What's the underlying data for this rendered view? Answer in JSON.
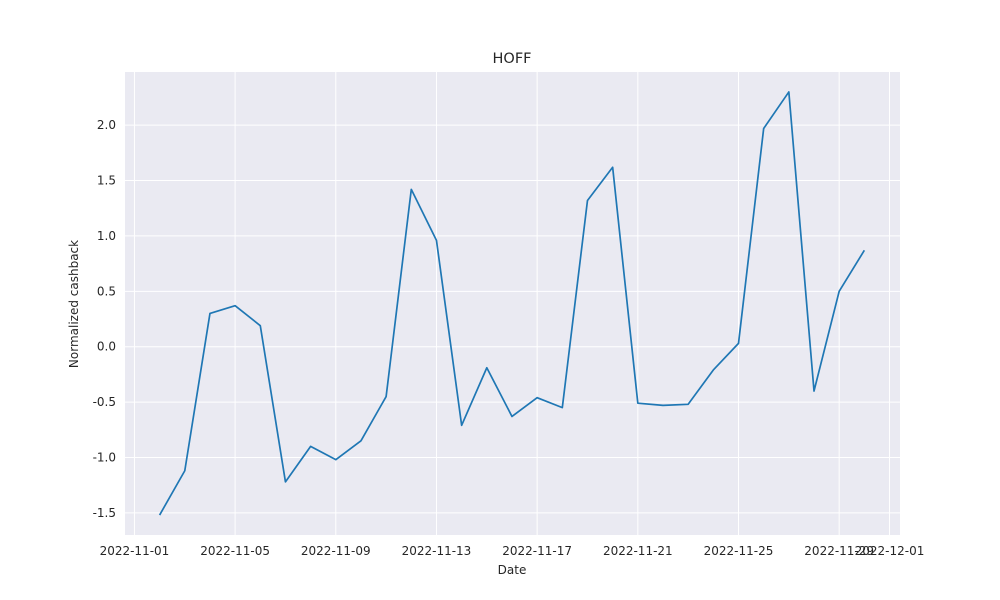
{
  "chart_data": {
    "type": "line",
    "title": "HOFF",
    "xlabel": "Date",
    "ylabel": "Normalized cashback",
    "x_ticks": [
      "2022-11-01",
      "2022-11-05",
      "2022-11-09",
      "2022-11-13",
      "2022-11-17",
      "2022-11-21",
      "2022-11-25",
      "2022-11-29",
      "2022-12-01"
    ],
    "xlim": [
      "2022-10-31T15:00",
      "2022-12-01T10:00"
    ],
    "y_ticks": [
      -1.5,
      -1.0,
      -0.5,
      0.0,
      0.5,
      1.0,
      1.5,
      2.0
    ],
    "ylim": [
      -1.7,
      2.48
    ],
    "grid": true,
    "colors": {
      "background": "#eaeaf2",
      "grid": "#ffffff",
      "line": "#1f77b4"
    },
    "series": [
      {
        "x": [
          "2022-11-02",
          "2022-11-03",
          "2022-11-04",
          "2022-11-05",
          "2022-11-06",
          "2022-11-07",
          "2022-11-08",
          "2022-11-09",
          "2022-11-10",
          "2022-11-11",
          "2022-11-12",
          "2022-11-13",
          "2022-11-14",
          "2022-11-15",
          "2022-11-16",
          "2022-11-17",
          "2022-11-18",
          "2022-11-19",
          "2022-11-20",
          "2022-11-21",
          "2022-11-22",
          "2022-11-23",
          "2022-11-24",
          "2022-11-25",
          "2022-11-26",
          "2022-11-27",
          "2022-11-28",
          "2022-11-29",
          "2022-11-30"
        ],
        "values": [
          -1.52,
          -1.12,
          0.3,
          0.37,
          0.19,
          -1.22,
          -0.9,
          -1.02,
          -0.85,
          -0.45,
          1.42,
          0.96,
          -0.71,
          -0.19,
          -0.63,
          -0.46,
          -0.55,
          1.32,
          1.62,
          -0.51,
          -0.53,
          -0.52,
          -0.21,
          0.03,
          1.97,
          2.3,
          -0.4,
          0.5,
          0.87
        ]
      }
    ]
  }
}
